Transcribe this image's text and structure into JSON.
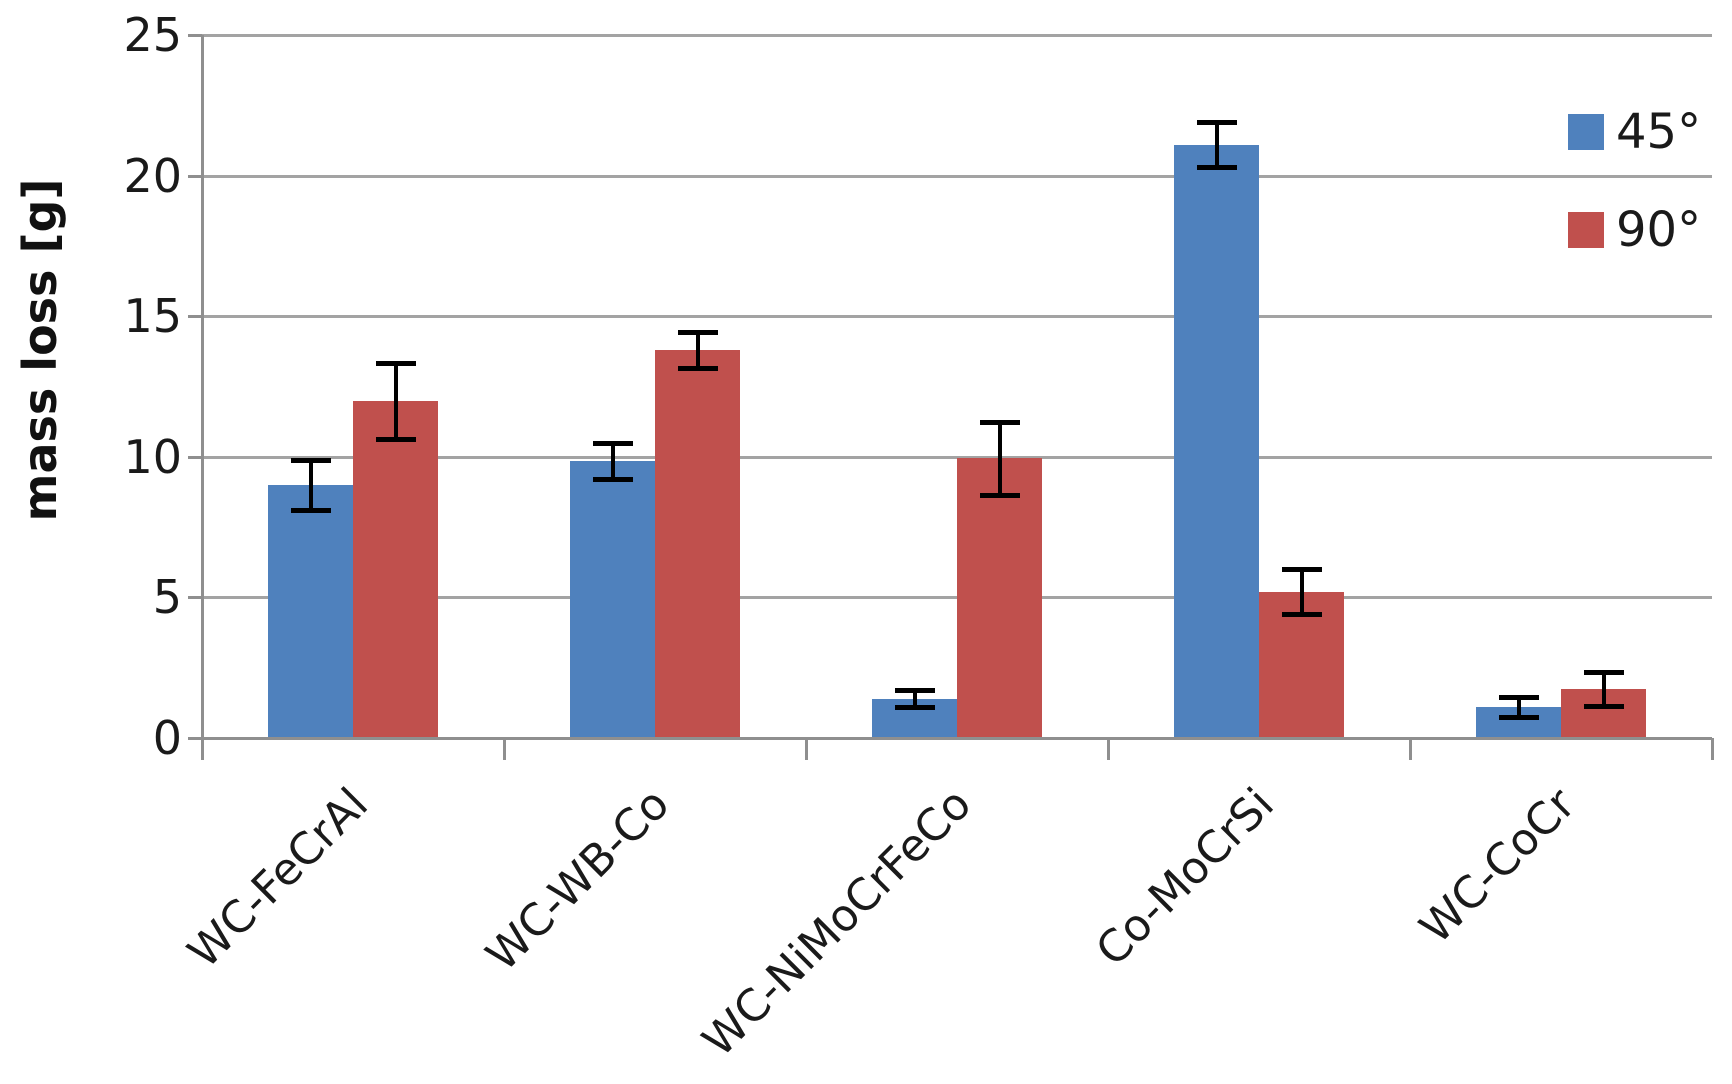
{
  "chart_data": {
    "type": "bar",
    "title": "",
    "ylabel": "mass loss [g]",
    "xlabel": "",
    "ylim": [
      0,
      25
    ],
    "yticks": [
      0,
      5,
      10,
      15,
      20,
      25
    ],
    "grid": true,
    "legend_position": "top-right",
    "categories": [
      "WC-FeCrAl",
      "WC-WB-Co",
      "WC-NiMoCrFeCo",
      "Co-MoCrSi",
      "WC-CoCr"
    ],
    "series": [
      {
        "name": "45°",
        "color": "#4F81BD",
        "values": [
          9.0,
          9.85,
          1.4,
          21.1,
          1.1
        ],
        "errors": [
          0.9,
          0.65,
          0.3,
          0.8,
          0.35
        ]
      },
      {
        "name": "90°",
        "color": "#C0504D",
        "values": [
          12.0,
          13.8,
          9.95,
          5.2,
          1.75
        ],
        "errors": [
          1.35,
          0.65,
          1.3,
          0.8,
          0.6
        ]
      }
    ],
    "error_bar_color": "#000000",
    "grid_color": "#A3A3A3",
    "axis_color": "#8F8F8F",
    "text_color": "#1A1A1A"
  }
}
